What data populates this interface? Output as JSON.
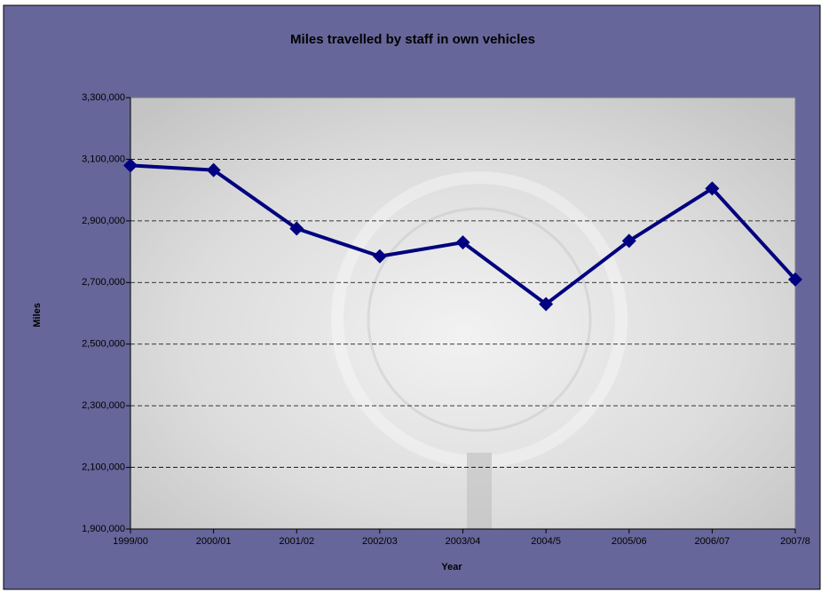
{
  "chart_data": {
    "type": "line",
    "title": "Miles travelled by staff in own vehicles",
    "x_label": "Year",
    "y_label": "Miles",
    "categories": [
      "1999/00",
      "2000/01",
      "2001/02",
      "2002/03",
      "2003/04",
      "2004/5",
      "2005/06",
      "2006/07",
      "2007/8"
    ],
    "series": [
      {
        "name": "Miles",
        "color": "#000080",
        "values": [
          3080000,
          3065000,
          2875000,
          2785000,
          2830000,
          2630000,
          2835000,
          3005000,
          2710000
        ]
      }
    ],
    "ylim": [
      1900000,
      3300000
    ],
    "yticks": [
      {
        "value": 1900000,
        "label": "1,900,000"
      },
      {
        "value": 2100000,
        "label": "2,100,000"
      },
      {
        "value": 2300000,
        "label": "2,300,000"
      },
      {
        "value": 2500000,
        "label": "2,500,000"
      },
      {
        "value": 2700000,
        "label": "2,700,000"
      },
      {
        "value": 2900000,
        "label": "2,900,000"
      },
      {
        "value": 3100000,
        "label": "3,100,000"
      },
      {
        "value": 3300000,
        "label": "3,300,000"
      }
    ],
    "grid": true,
    "legend": false
  }
}
